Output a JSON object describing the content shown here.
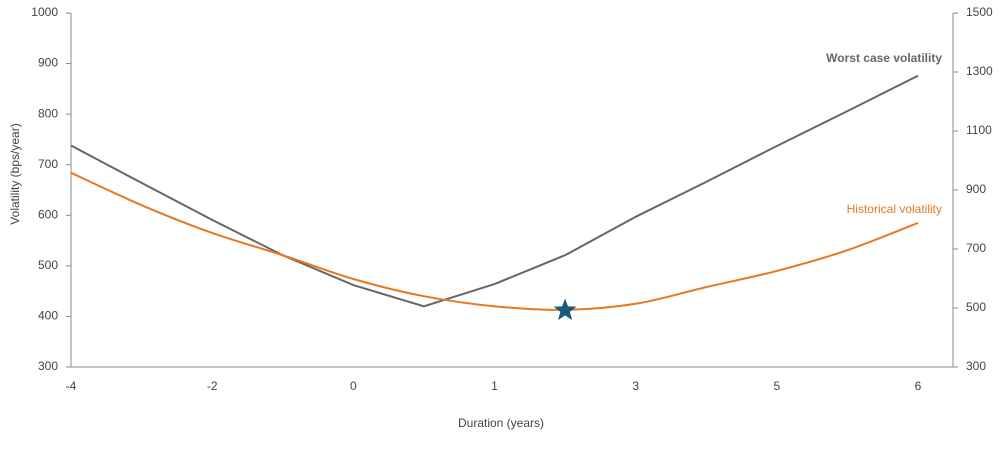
{
  "chart_data": {
    "type": "line",
    "x_label": "Duration (years)",
    "y_label": "Volatility (bps/year)",
    "categories": [
      "-4",
      null,
      "-2",
      null,
      "0",
      null,
      "1",
      null,
      "3",
      null,
      "5",
      null,
      "6"
    ],
    "ylim": [
      300,
      1000
    ],
    "yticks": [
      300,
      400,
      500,
      600,
      700,
      800,
      900,
      1000
    ],
    "y2lim": [
      300,
      1500
    ],
    "y2ticks": [
      300,
      500,
      700,
      900,
      1100,
      1300,
      1500
    ],
    "series": [
      {
        "name": "Worst case volatility",
        "color": "#666666",
        "smooth": false,
        "values": [
          738,
          664,
          591,
          521,
          462,
          420,
          464,
          521,
          597,
          666,
          737,
          806,
          876
        ]
      },
      {
        "name": "Historical volatility",
        "color": "#e87722",
        "smooth": true,
        "values": [
          684,
          620,
          565,
          521,
          474,
          440,
          420,
          413,
          425,
          458,
          490,
          531,
          585
        ]
      }
    ],
    "highlight": {
      "category_index": 7,
      "value": 412,
      "color": "#1b5a7a"
    }
  }
}
